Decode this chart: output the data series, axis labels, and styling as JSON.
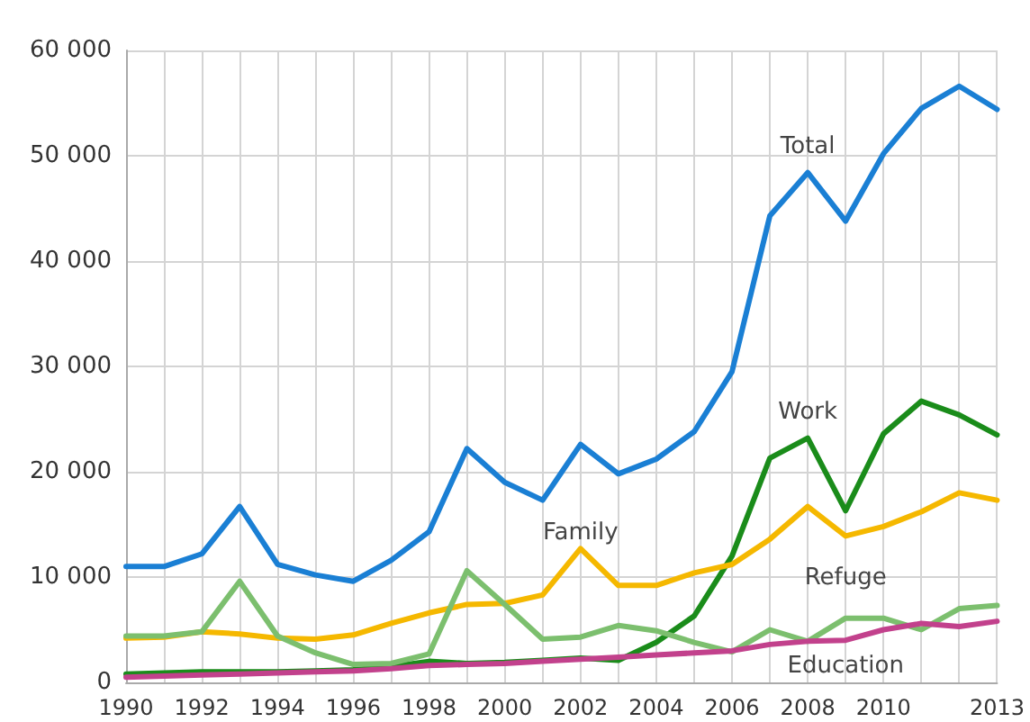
{
  "chart_data": {
    "type": "line",
    "x": [
      1990,
      1991,
      1992,
      1993,
      1994,
      1995,
      1996,
      1997,
      1998,
      1999,
      2000,
      2001,
      2002,
      2003,
      2004,
      2005,
      2006,
      2007,
      2008,
      2009,
      2010,
      2011,
      2012,
      2013
    ],
    "series": [
      {
        "name": "Total",
        "color": "#1a7fd4",
        "values": [
          11000,
          11000,
          12200,
          16700,
          11200,
          10200,
          9600,
          11600,
          14300,
          22200,
          19000,
          17300,
          22600,
          19800,
          21200,
          23800,
          29500,
          44300,
          48400,
          43800,
          50200,
          54500,
          56600,
          54400
        ]
      },
      {
        "name": "Work",
        "color": "#1a8c1a",
        "values": [
          800,
          900,
          1000,
          1000,
          1000,
          1100,
          1200,
          1500,
          2000,
          1800,
          1900,
          2100,
          2300,
          2100,
          3800,
          6300,
          12000,
          21300,
          23200,
          16300,
          23600,
          26700,
          25400,
          23500
        ]
      },
      {
        "name": "Family",
        "color": "#f5b800",
        "values": [
          4200,
          4300,
          4800,
          4600,
          4200,
          4100,
          4500,
          5600,
          6600,
          7400,
          7500,
          8300,
          12700,
          9200,
          9200,
          10400,
          11200,
          13600,
          16700,
          13900,
          14800,
          16200,
          18000,
          17300
        ]
      },
      {
        "name": "Refuge",
        "color": "#7cbf6e",
        "values": [
          4400,
          4400,
          4800,
          9600,
          4400,
          2800,
          1700,
          1800,
          2700,
          10600,
          7400,
          4100,
          4300,
          5400,
          4900,
          3800,
          2900,
          5000,
          3900,
          6100,
          6100,
          5000,
          7000,
          7300
        ]
      },
      {
        "name": "Education",
        "color": "#c2418c",
        "values": [
          500,
          600,
          700,
          800,
          900,
          1000,
          1100,
          1300,
          1600,
          1700,
          1800,
          2000,
          2200,
          2400,
          2600,
          2800,
          3000,
          3600,
          3900,
          4000,
          5000,
          5600,
          5300,
          5800
        ]
      }
    ],
    "xlim": [
      1990,
      2013
    ],
    "xticks": [
      1990,
      {
        "value": 1991,
        "label": null
      },
      1992,
      {
        "value": 1993,
        "label": null
      },
      1994,
      {
        "value": 1995,
        "label": null
      },
      1996,
      {
        "value": 1997,
        "label": null
      },
      1998,
      {
        "value": 1999,
        "label": null
      },
      2000,
      {
        "value": 2001,
        "label": null
      },
      2002,
      {
        "value": 2003,
        "label": null
      },
      2004,
      {
        "value": 2005,
        "label": null
      },
      2006,
      {
        "value": 2007,
        "label": null
      },
      2008,
      {
        "value": 2009,
        "label": null
      },
      2010,
      {
        "value": 2011,
        "label": null
      },
      {
        "value": 2012,
        "label": null
      },
      2013
    ],
    "ylim": [
      0,
      60000
    ],
    "yticks": [
      {
        "value": 0,
        "label": "0"
      },
      {
        "value": 10000,
        "label": "10 000"
      },
      {
        "value": 20000,
        "label": "20 000"
      },
      {
        "value": 30000,
        "label": "30 000"
      },
      {
        "value": 40000,
        "label": "40 000"
      },
      {
        "value": 50000,
        "label": "50 000"
      },
      {
        "value": 60000,
        "label": "60 000"
      }
    ],
    "grid": true,
    "legend": false,
    "marker": "none",
    "line_style": "solid"
  }
}
